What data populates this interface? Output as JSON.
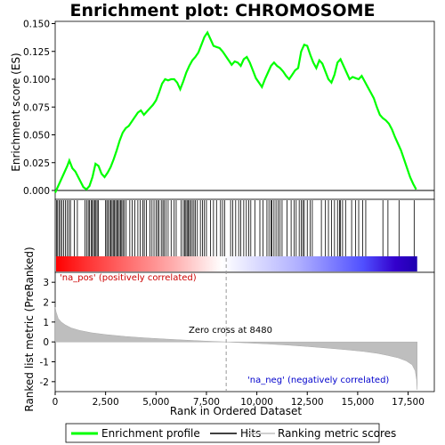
{
  "chart_data": {
    "type": "line",
    "title": "Enrichment plot: CHROMOSOME",
    "top_panel": {
      "ylabel": "Enrichment score (ES)",
      "ylim": [
        -0.008,
        0.152
      ],
      "yticks": [
        0.0,
        0.025,
        0.05,
        0.075,
        0.1,
        0.125,
        0.15
      ],
      "ytick_labels": [
        "0.000",
        "0.025",
        "0.050",
        "0.075",
        "0.100",
        "0.125",
        "0.150"
      ],
      "series": [
        {
          "name": "Enrichment profile",
          "color": "#00ff00",
          "x": [
            0,
            150,
            300,
            450,
            600,
            700,
            850,
            1000,
            1200,
            1400,
            1550,
            1700,
            1850,
            2000,
            2150,
            2300,
            2450,
            2600,
            2750,
            2900,
            3050,
            3200,
            3350,
            3500,
            3650,
            3800,
            3950,
            4100,
            4250,
            4400,
            4550,
            4700,
            4850,
            5000,
            5150,
            5300,
            5450,
            5600,
            5750,
            5900,
            6050,
            6200,
            6350,
            6500,
            6650,
            6800,
            6950,
            7100,
            7250,
            7400,
            7550,
            7700,
            7850,
            8000,
            8150,
            8300,
            8450,
            8600,
            8750,
            8900,
            9050,
            9200,
            9350,
            9500,
            9650,
            9800,
            9950,
            10100,
            10250,
            10400,
            10550,
            10700,
            10850,
            11000,
            11150,
            11300,
            11450,
            11600,
            11750,
            11900,
            12050,
            12200,
            12350,
            12500,
            12650,
            12800,
            12950,
            13100,
            13250,
            13400,
            13550,
            13700,
            13850,
            14000,
            14150,
            14300,
            14450,
            14600,
            14750,
            14900,
            15050,
            15200,
            15350,
            15500,
            15650,
            15800,
            15950,
            16100,
            16250,
            16400,
            16550,
            16700,
            16850,
            17000,
            17150,
            17300,
            17450,
            17600,
            17750,
            17900
          ],
          "y": [
            -0.002,
            0.004,
            0.01,
            0.016,
            0.022,
            0.027,
            0.02,
            0.017,
            0.01,
            0.003,
            0.001,
            0.004,
            0.012,
            0.024,
            0.022,
            0.015,
            0.012,
            0.016,
            0.021,
            0.028,
            0.036,
            0.045,
            0.052,
            0.056,
            0.058,
            0.062,
            0.066,
            0.07,
            0.072,
            0.068,
            0.071,
            0.074,
            0.077,
            0.081,
            0.088,
            0.096,
            0.1,
            0.099,
            0.1,
            0.1,
            0.097,
            0.091,
            0.098,
            0.106,
            0.112,
            0.117,
            0.12,
            0.124,
            0.131,
            0.138,
            0.142,
            0.136,
            0.13,
            0.129,
            0.128,
            0.125,
            0.121,
            0.117,
            0.113,
            0.116,
            0.115,
            0.112,
            0.118,
            0.12,
            0.115,
            0.108,
            0.101,
            0.097,
            0.093,
            0.1,
            0.106,
            0.112,
            0.115,
            0.112,
            0.11,
            0.107,
            0.103,
            0.1,
            0.104,
            0.108,
            0.11,
            0.125,
            0.131,
            0.13,
            0.122,
            0.115,
            0.11,
            0.117,
            0.114,
            0.107,
            0.1,
            0.097,
            0.104,
            0.115,
            0.118,
            0.112,
            0.106,
            0.1,
            0.102,
            0.101,
            0.1,
            0.103,
            0.098,
            0.093,
            0.088,
            0.083,
            0.075,
            0.068,
            0.065,
            0.063,
            0.06,
            0.055,
            0.048,
            0.042,
            0.036,
            0.028,
            0.02,
            0.012,
            0.006,
            0.001
          ]
        }
      ]
    },
    "hits_panel": {
      "name": "Hits",
      "hit_ranks": [
        60,
        120,
        190,
        260,
        330,
        420,
        510,
        600,
        680,
        760,
        950,
        1100,
        1480,
        1560,
        1640,
        1700,
        1780,
        1840,
        1900,
        1960,
        2020,
        2080,
        2140,
        2500,
        2560,
        2620,
        2700,
        2760,
        2820,
        2880,
        2940,
        3000,
        3060,
        3120,
        3180,
        3240,
        3300,
        3360,
        3430,
        3520,
        3700,
        3820,
        3950,
        4100,
        4220,
        4350,
        4420,
        4520,
        4700,
        4800,
        4900,
        5000,
        5080,
        5150,
        5260,
        5340,
        5400,
        5500,
        5600,
        5750,
        5900,
        6000,
        6250,
        6350,
        6420,
        6480,
        6540,
        6600,
        6660,
        6720,
        6800,
        6880,
        6950,
        7050,
        7200,
        7300,
        7400,
        7500,
        7700,
        7850,
        8000,
        8200,
        8300,
        8400,
        8700,
        8800,
        8950,
        9100,
        9200,
        9350,
        9480,
        9600,
        9700,
        9900,
        10150,
        10300,
        10500,
        10600,
        10700,
        10750,
        10850,
        10950,
        11050,
        11150,
        11250,
        11500,
        11700,
        11850,
        11950,
        12100,
        12200,
        12280,
        12350,
        12500,
        12650,
        12750,
        13200,
        13400,
        13550,
        13700,
        13850,
        14000,
        14100,
        14150,
        14250,
        14400,
        14700,
        14900,
        15050,
        15250,
        15400,
        16250,
        16500,
        17050,
        17800
      ]
    },
    "rank_panel": {
      "name": "Ranking metric scores",
      "ylabel": "Ranked list metric (PreRanked)",
      "xlabel": "Rank in Ordered Dataset",
      "ylim": [
        -2.5,
        3.5
      ],
      "yticks": [
        -2,
        -1,
        0,
        1,
        2,
        3
      ],
      "ytick_labels": [
        "-2",
        "-1",
        "0",
        "1",
        "2",
        "3"
      ],
      "xlim": [
        0,
        18800
      ],
      "xticks": [
        0,
        2500,
        5000,
        7500,
        10000,
        12500,
        15000,
        17500
      ],
      "xtick_labels": [
        "0",
        "2,500",
        "5,000",
        "7,500",
        "10,000",
        "12,500",
        "15,000",
        "17,500"
      ],
      "x": [
        0,
        50,
        150,
        300,
        500,
        800,
        1200,
        1800,
        2500,
        3500,
        4500,
        5500,
        6500,
        7500,
        8480,
        9500,
        10500,
        11500,
        12500,
        13500,
        14500,
        15300,
        16000,
        16500,
        17000,
        17400,
        17700,
        17850,
        17920,
        17950
      ],
      "values": [
        1.75,
        1.5,
        1.18,
        1.0,
        0.86,
        0.7,
        0.58,
        0.46,
        0.37,
        0.27,
        0.2,
        0.14,
        0.09,
        0.04,
        0.0,
        -0.05,
        -0.1,
        -0.16,
        -0.23,
        -0.31,
        -0.4,
        -0.48,
        -0.58,
        -0.68,
        -0.8,
        -0.95,
        -1.15,
        -1.45,
        -1.9,
        -2.4
      ],
      "zero_cross_label": "Zero cross at 8480",
      "zero_cross_rank": 8480,
      "pos_label": "'na_pos' (positively correlated)",
      "neg_label": "'na_neg' (negatively correlated)"
    },
    "legend": {
      "placement": "bottom",
      "items": [
        {
          "label": "Enrichment profile",
          "color": "#00ff00"
        },
        {
          "label": "Hits",
          "color": "#000000"
        },
        {
          "label": "Ranking metric scores",
          "color": "#c0c0c0"
        }
      ]
    },
    "colors": {
      "profile": "#00ff00",
      "pos_text": "#cc0000",
      "neg_text": "#0000cc",
      "rank_fill": "#bebebe",
      "zero_line": "#999999"
    }
  }
}
